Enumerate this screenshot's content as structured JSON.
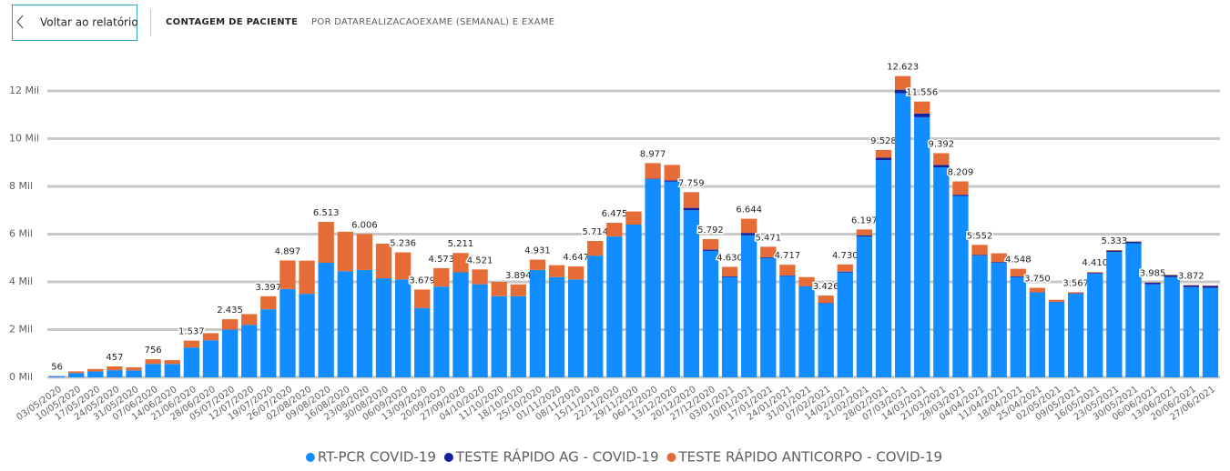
{
  "back_button": "Voltar ao relatório",
  "chart_data": {
    "type": "bar",
    "stacked": true,
    "title": "CONTAGEM DE PACIENTE",
    "subtitle": "POR DATAREALIZACAOEXAME (SEMANAL) E EXAME",
    "categories": [
      "03/05/2020",
      "10/05/2020",
      "17/05/2020",
      "24/05/2020",
      "31/05/2020",
      "07/06/2020",
      "14/06/2020",
      "21/06/2020",
      "28/06/2020",
      "05/07/2020",
      "12/07/2020",
      "19/07/2020",
      "26/07/2020",
      "02/08/2020",
      "09/08/2020",
      "16/08/2020",
      "23/08/2020",
      "30/08/2020",
      "06/09/2020",
      "13/09/2020",
      "20/09/2020",
      "27/09/2020",
      "04/10/2020",
      "11/10/2020",
      "18/10/2020",
      "25/10/2020",
      "01/11/2020",
      "08/11/2020",
      "15/11/2020",
      "22/11/2020",
      "29/11/2020",
      "06/12/2020",
      "13/12/2020",
      "20/12/2020",
      "27/12/2020",
      "03/01/2021",
      "10/01/2021",
      "17/01/2021",
      "24/01/2021",
      "31/01/2021",
      "07/02/2021",
      "14/02/2021",
      "21/02/2021",
      "28/02/2021",
      "07/03/2021",
      "14/03/2021",
      "21/03/2021",
      "28/03/2021",
      "04/04/2021",
      "11/04/2021",
      "18/04/2021",
      "25/04/2021",
      "02/05/2021",
      "09/05/2021",
      "16/05/2021",
      "23/05/2021",
      "30/05/2021",
      "06/06/2021",
      "13/06/2021",
      "20/06/2021",
      "27/06/2021"
    ],
    "series": [
      {
        "name": "RT-PCR COVID-19",
        "color": "#118DFF",
        "values": [
          50,
          180,
          250,
          300,
          290,
          560,
          560,
          1250,
          1550,
          2000,
          2200,
          2850,
          3700,
          3500,
          4800,
          4450,
          4500,
          4150,
          4100,
          2900,
          3800,
          4400,
          3900,
          3400,
          3400,
          4500,
          4200,
          4100,
          5100,
          5900,
          6400,
          8300,
          8200,
          7000,
          5300,
          4200,
          5950,
          5000,
          4250,
          3800,
          3100,
          4400,
          5900,
          9100,
          11900,
          10900,
          8800,
          7600,
          5100,
          4800,
          4200,
          3550,
          3150,
          3500,
          4350,
          5250,
          5620,
          3900,
          4200,
          3780,
          3750
        ]
      },
      {
        "name": "TESTE RÁPIDO AG - COVID-19",
        "color": "#12239E",
        "values": [
          0,
          0,
          0,
          0,
          0,
          0,
          0,
          0,
          0,
          0,
          0,
          0,
          0,
          0,
          0,
          0,
          0,
          0,
          0,
          0,
          0,
          0,
          0,
          0,
          0,
          0,
          0,
          0,
          0,
          0,
          0,
          20,
          50,
          100,
          50,
          30,
          100,
          30,
          20,
          20,
          20,
          30,
          50,
          100,
          150,
          150,
          100,
          50,
          30,
          30,
          30,
          20,
          20,
          20,
          30,
          60,
          60,
          65,
          80,
          72,
          80
        ]
      },
      {
        "name": "TESTE RÁPIDO ANTICORPO - COVID-19",
        "color": "#E66C37",
        "values": [
          6,
          70,
          100,
          157,
          130,
          196,
          160,
          287,
          300,
          435,
          450,
          547,
          1197,
          1390,
          1713,
          1650,
          1506,
          1450,
          1136,
          779,
          773,
          811,
          621,
          600,
          494,
          431,
          500,
          547,
          614,
          575,
          550,
          657,
          650,
          659,
          442,
          400,
          594,
          441,
          447,
          380,
          306,
          300,
          247,
          328,
          573,
          506,
          492,
          559,
          422,
          370,
          318,
          180,
          80,
          47,
          30,
          23,
          20,
          20,
          20,
          20,
          20
        ]
      }
    ],
    "totals": {
      "values": [
        56,
        null,
        null,
        457,
        null,
        756,
        null,
        1537,
        null,
        2435,
        null,
        3397,
        4897,
        null,
        6513,
        null,
        6006,
        null,
        5236,
        3679,
        4573,
        5211,
        4521,
        null,
        3894,
        4931,
        null,
        4647,
        5714,
        6475,
        null,
        8977,
        null,
        7759,
        5792,
        4630,
        6644,
        5471,
        4717,
        null,
        3426,
        4730,
        6197,
        9528,
        12623,
        11556,
        9392,
        8209,
        5552,
        null,
        4548,
        3750,
        null,
        3567,
        4410,
        5333,
        null,
        3985,
        null,
        3872,
        null
      ],
      "value_labels": [
        "56",
        null,
        null,
        "457",
        null,
        "756",
        null,
        "1.537",
        null,
        "2.435",
        null,
        "3.397",
        "4.897",
        null,
        "6.513",
        null,
        "6.006",
        null,
        "5.236",
        "3.679",
        "4.573",
        "5.211",
        "4.521",
        null,
        "3.894",
        "4.931",
        null,
        "4.647",
        "5.714",
        "6.475",
        null,
        "8.977",
        null,
        "7.759",
        "5.792",
        "4.630",
        "6.644",
        "5.471",
        "4.717",
        null,
        "3.426",
        "4.730",
        "6.197",
        "9.528",
        "12.623",
        "11.556",
        "9.392",
        "8.209",
        "5.552",
        null,
        "4.548",
        "3.750",
        null,
        "3.567",
        "4.410",
        "5.333",
        null,
        "3.985",
        null,
        "3.872",
        null
      ]
    },
    "ylim": [
      0,
      12800
    ],
    "yticks": [
      {
        "value": 0,
        "label": "0 Mil"
      },
      {
        "value": 2000,
        "label": "2 Mil"
      },
      {
        "value": 4000,
        "label": "4 Mil"
      },
      {
        "value": 6000,
        "label": "6 Mil"
      },
      {
        "value": 8000,
        "label": "8 Mil"
      },
      {
        "value": 10000,
        "label": "10 Mil"
      },
      {
        "value": 12000,
        "label": "12 Mil"
      }
    ],
    "grid": true,
    "legend": "bottom"
  }
}
